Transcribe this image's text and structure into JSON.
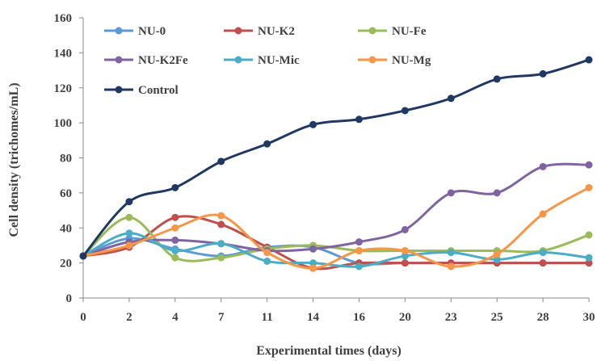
{
  "chart_data": {
    "type": "line",
    "title": "",
    "xlabel": "Experimental times (days)",
    "ylabel": "Cell density (trichomes/mL)",
    "categories": [
      "0",
      "2",
      "4",
      "7",
      "11",
      "14",
      "16",
      "20",
      "23",
      "25",
      "28",
      "30"
    ],
    "ylim": [
      0,
      160
    ],
    "yticks": [
      0,
      20,
      40,
      60,
      80,
      100,
      120,
      140,
      160
    ],
    "grid": false,
    "legend_position": "top-left, inside, 3 columns",
    "series": [
      {
        "name": "NU-0",
        "color": "#5B9BD5",
        "values": [
          24,
          34,
          28,
          24,
          29,
          29,
          20,
          20,
          20,
          20,
          20,
          20
        ]
      },
      {
        "name": "NU-K2",
        "color": "#C0504D",
        "values": [
          24,
          29,
          46,
          42,
          29,
          17,
          20,
          20,
          20,
          20,
          20,
          20
        ]
      },
      {
        "name": "NU-Fe",
        "color": "#9BBB59",
        "values": [
          24,
          46,
          23,
          23,
          28,
          30,
          27,
          27,
          27,
          27,
          27,
          36
        ]
      },
      {
        "name": "NU-K2Fe",
        "color": "#8064A2",
        "values": [
          24,
          32,
          33,
          31,
          27,
          28,
          32,
          39,
          60,
          60,
          75,
          76
        ]
      },
      {
        "name": "NU-Mic",
        "color": "#4BACC6",
        "values": [
          24,
          37,
          27,
          31,
          21,
          20,
          18,
          24,
          26,
          22,
          26,
          23
        ]
      },
      {
        "name": "NU-Mg",
        "color": "#F79646",
        "values": [
          24,
          30,
          40,
          47,
          26,
          17,
          27,
          27,
          18,
          25,
          48,
          63
        ]
      },
      {
        "name": "Control",
        "color": "#1F3864",
        "values": [
          24,
          55,
          63,
          78,
          88,
          99,
          102,
          107,
          114,
          125,
          128,
          136
        ]
      }
    ]
  }
}
